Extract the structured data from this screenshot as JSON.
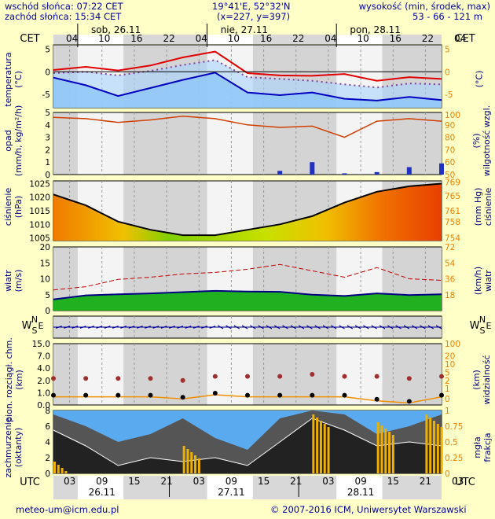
{
  "header": {
    "sunrise": "wschód słońca: 07:22 CET",
    "sunset": "zachód słońca: 15:34 CET",
    "coords": "19°41'E, 52°32'N",
    "grid": "(x=227,  y=397)",
    "height_title": "wysokość (min, środek, max)",
    "height_values": "53 - 66 - 121 m"
  },
  "timeline": {
    "cet_label": "CET",
    "utc_label": "UTC",
    "days_top": [
      "sob, 26.11",
      "nie, 27.11",
      "pon, 28.11"
    ],
    "hours_top": [
      "04",
      "10",
      "16",
      "22",
      "04",
      "10",
      "16",
      "22",
      "04",
      "10",
      "16",
      "22",
      "04"
    ],
    "hours_bottom": [
      "03",
      "09",
      "15",
      "21",
      "03",
      "09",
      "15",
      "21",
      "03",
      "09",
      "15",
      "21",
      "03"
    ],
    "days_bottom": [
      "26.11",
      "27.11",
      "28.11"
    ]
  },
  "panels": {
    "temperature": {
      "left_label": "temperatura",
      "left_unit": "(°C)",
      "right_label": "(°C)",
      "ticks": [
        "5",
        "0",
        "-5"
      ]
    },
    "precip": {
      "left_label": "opad",
      "left_unit": "(mm/h, kg/m²/h)",
      "right_label": "wilgotność wzgl.",
      "right_unit": "(%)",
      "ticks_left": [
        "5",
        "4",
        "3",
        "2",
        "1",
        "0"
      ],
      "ticks_right": [
        "100",
        "90",
        "80",
        "70",
        "60",
        "50"
      ]
    },
    "pressure": {
      "left_label": "ciśnienie",
      "left_unit": "(hPa)",
      "right_label": "ciśnienie",
      "right_unit": "(mm Hg)",
      "ticks_left": [
        "1025",
        "1020",
        "1015",
        "1010",
        "1005"
      ],
      "ticks_right": [
        "769",
        "765",
        "761",
        "758",
        "754"
      ]
    },
    "wind": {
      "left_label": "wiatr",
      "left_unit": "(m/s)",
      "right_label": "wiatr",
      "right_unit": "(km/h)",
      "ticks_left": [
        "20",
        "15",
        "10",
        "5",
        "0"
      ],
      "ticks_right": [
        "72",
        "54",
        "36",
        "18"
      ]
    },
    "direction": {
      "left_letters": "W S N E",
      "right_letters": "W S N E"
    },
    "clouds": {
      "left_label": "pion. rozciągł. chm.",
      "left_unit": "(km)",
      "right_label": "widzialność",
      "right_unit": "(km)",
      "ticks_left": [
        "15.0",
        "7.0",
        "4.0",
        "2.0",
        "1.0",
        "0.0"
      ],
      "ticks_right": [
        "100",
        "20",
        "10",
        "5",
        "2",
        "1",
        "0"
      ]
    },
    "cover": {
      "left_label": "zachmurzenie",
      "left_unit": "(oktanty)",
      "right_label": "frakcja",
      "right_unit": "mgła",
      "ticks_left": [
        "8",
        "6",
        "4",
        "2",
        "0"
      ],
      "ticks_right": [
        "1",
        "0.75",
        "0.5",
        "0.25",
        "0"
      ]
    }
  },
  "footer": {
    "email": "meteo-um@icm.edu.pl",
    "copyright": "© 2007-2016 ICM, Uniwersytet Warszawski"
  },
  "chart_data": [
    {
      "type": "line",
      "title": "temperatura",
      "ylabel": "(°C)",
      "ylim": [
        -8,
        6
      ],
      "x": [
        0,
        6,
        12,
        18,
        24,
        30,
        36,
        42,
        48,
        54,
        60,
        66,
        72
      ],
      "series": [
        {
          "values": [
            0.4,
            1.1,
            0.3,
            1.4,
            3.2,
            4.5,
            -0.3,
            -0.8,
            -0.9,
            -0.5,
            -2.0,
            -1.2,
            -1.6
          ]
        },
        {
          "values": [
            -0.3,
            0.0,
            -0.8,
            0.2,
            1.5,
            2.6,
            -1.2,
            -1.6,
            -2.0,
            -2.8,
            -3.5,
            -2.6,
            -2.8
          ]
        },
        {
          "values": [
            -1.3,
            -3.0,
            -5.4,
            -3.6,
            -1.8,
            -0.2,
            -4.6,
            -5.2,
            -4.6,
            -6.0,
            -6.4,
            -5.6,
            -6.3
          ]
        }
      ]
    },
    {
      "type": "bar",
      "title": "opad / wilgotność wzgl.",
      "ylabel": "(mm/h, kg/m²/h)",
      "ylim": [
        0,
        5
      ],
      "x": [
        0,
        6,
        12,
        18,
        24,
        30,
        36,
        42,
        48,
        54,
        60,
        66,
        72
      ],
      "series": [
        {
          "values": [
            0,
            0,
            0,
            0,
            0,
            0,
            0,
            0.3,
            1.0,
            0.1,
            0.2,
            0.6,
            0.9
          ]
        },
        {
          "values": [
            96,
            95,
            92,
            94,
            97,
            95,
            90,
            88,
            89,
            80,
            93,
            95,
            93
          ]
        }
      ]
    },
    {
      "type": "area",
      "title": "ciśnienie",
      "ylabel": "(hPa)",
      "ylim": [
        1004,
        1026
      ],
      "x": [
        0,
        6,
        12,
        18,
        24,
        30,
        36,
        42,
        48,
        54,
        60,
        66,
        72
      ],
      "values": [
        1021,
        1017,
        1011,
        1008,
        1006,
        1006,
        1008,
        1010,
        1013,
        1018,
        1022,
        1024,
        1025
      ]
    },
    {
      "type": "line",
      "title": "wiatr",
      "ylabel": "(m/s)",
      "ylim": [
        0,
        20
      ],
      "x": [
        0,
        6,
        12,
        18,
        24,
        30,
        36,
        42,
        48,
        54,
        60,
        66,
        72
      ],
      "series": [
        {
          "values": [
            3.5,
            4.8,
            5.1,
            5.4,
            5.8,
            6.2,
            6.0,
            5.9,
            5.0,
            4.6,
            5.4,
            4.9,
            5.1
          ]
        },
        {
          "values": [
            6.5,
            7.5,
            9.8,
            10.5,
            11.5,
            12.0,
            13.0,
            14.5,
            12.5,
            10.5,
            13.5,
            10.0,
            9.5
          ]
        }
      ]
    },
    {
      "type": "scatter",
      "title": "pion. rozciągł. chm. / widzialność",
      "ylabel": "(km)",
      "ylim": [
        0,
        15
      ],
      "x": [
        0,
        6,
        12,
        18,
        24,
        30,
        36,
        42,
        48,
        54,
        60,
        66,
        72
      ],
      "series": [
        {
          "values": [
            6.5,
            6.5,
            6.5,
            6.5,
            6.0,
            7.0,
            7.0,
            7.0,
            7.5,
            7.0,
            7.0,
            6.5,
            7.0
          ]
        },
        {
          "values": [
            2.0,
            2.0,
            2.0,
            2.0,
            1.5,
            2.5,
            2.0,
            2.0,
            2.0,
            2.0,
            1.0,
            0.5,
            2.0
          ]
        }
      ]
    },
    {
      "type": "area",
      "title": "zachmurzenie",
      "ylabel": "(oktanty)",
      "ylim": [
        0,
        8
      ],
      "x": [
        0,
        6,
        12,
        18,
        24,
        30,
        36,
        42,
        48,
        54,
        60,
        66,
        72
      ],
      "series": [
        {
          "values": [
            7.5,
            6.0,
            4.0,
            5.0,
            7.0,
            4.5,
            3.0,
            7.0,
            8.0,
            7.5,
            5.0,
            6.0,
            7.5
          ]
        },
        {
          "values": [
            5.5,
            3.5,
            1.0,
            2.0,
            1.5,
            2.0,
            1.0,
            4.0,
            7.0,
            5.5,
            3.5,
            4.0,
            3.5
          ]
        }
      ]
    }
  ]
}
